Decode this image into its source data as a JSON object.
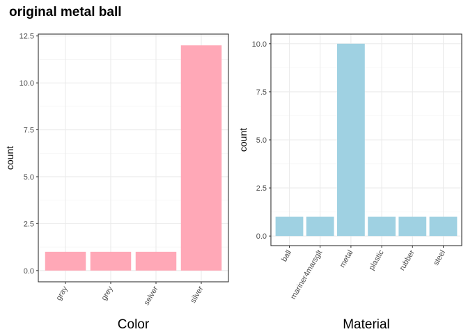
{
  "title": "original metal ball",
  "chart_data": [
    {
      "type": "bar",
      "xlabel": "Color",
      "ylabel": "count",
      "categories": [
        "gray",
        "grey",
        "selver",
        "silver"
      ],
      "values": [
        1,
        1,
        1,
        12
      ],
      "ylim": [
        -0.6,
        12.6
      ],
      "yticks": [
        0.0,
        2.5,
        5.0,
        7.5,
        10.0,
        12.5
      ],
      "ytick_labels": [
        "0.0",
        "2.5",
        "5.0",
        "7.5",
        "10.0",
        "12.5"
      ],
      "bar_color": "#ffa8b7",
      "grid": true,
      "xtick_rotation": 60
    },
    {
      "type": "bar",
      "xlabel": "Material",
      "ylabel": "count",
      "categories": [
        "ball",
        "mariner4marsglt",
        "metal",
        "plastic",
        "rubber",
        "steel"
      ],
      "values": [
        1,
        1,
        10,
        1,
        1,
        1
      ],
      "ylim": [
        -0.5,
        10.5
      ],
      "yticks": [
        0.0,
        2.5,
        5.0,
        7.5,
        10.0
      ],
      "ytick_labels": [
        "0.0",
        "2.5",
        "5.0",
        "7.5",
        "10.0"
      ],
      "bar_color": "#9fd1e2",
      "grid": true,
      "xtick_rotation": 60
    }
  ]
}
